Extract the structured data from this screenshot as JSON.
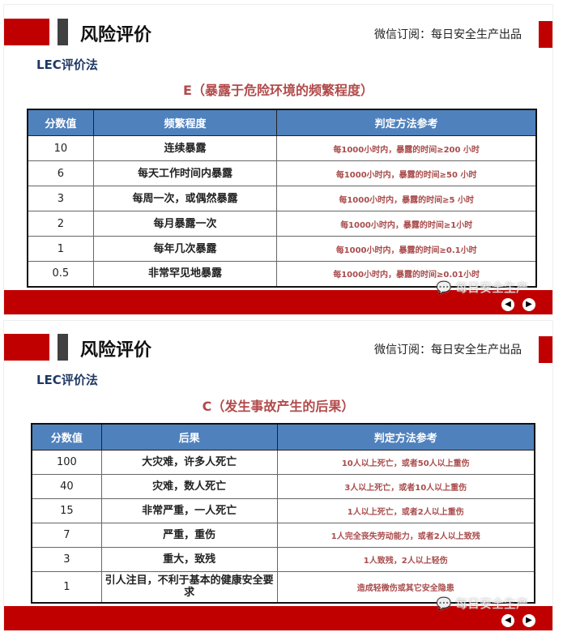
{
  "slides": [
    {
      "title": "风险评价",
      "wechat": "微信订阅：每日安全生产出品",
      "method": "LEC评价法",
      "subtitle": "E（暴露于危险环境的频繁程度）",
      "headers": [
        "分数值",
        "频繁程度",
        "判定方法参考"
      ],
      "rows": [
        [
          "10",
          "连续暴露",
          "每1000小时内，暴露的时间≥200 小时"
        ],
        [
          "6",
          "每天工作时间内暴露",
          "每1000小时内，暴露的时间≥50 小时"
        ],
        [
          "3",
          "每周一次，或偶然暴露",
          "每1000小时内，暴露的时间≥5 小时"
        ],
        [
          "2",
          "每月暴露一次",
          "每1000小时内，暴露的时间≥1小时"
        ],
        [
          "1",
          "每年几次暴露",
          "每1000小时内，暴露的时间≥0.1小时"
        ],
        [
          "0.5",
          "非常罕见地暴露",
          "每1000小时内，暴露的时间≥0.01小时"
        ]
      ],
      "watermark": "每日安全生产"
    },
    {
      "title": "风险评价",
      "wechat": "微信订阅：每日安全生产出品",
      "method": "LEC评价法",
      "subtitle": "C（发生事故产生的后果）",
      "headers": [
        "分数值",
        "后果",
        "判定方法参考"
      ],
      "rows": [
        [
          "100",
          "大灾难，许多人死亡",
          "10人以上死亡，或者50人以上重伤"
        ],
        [
          "40",
          "灾难，数人死亡",
          "3人以上死亡，或者10人以上重伤"
        ],
        [
          "15",
          "非常严重，一人死亡",
          "1人以上死亡，或者2人以上重伤"
        ],
        [
          "7",
          "严重，重伤",
          "1人完全丧失劳动能力，或者2人以上致残"
        ],
        [
          "3",
          "重大，致残",
          "1人致残，2人以上轻伤"
        ],
        [
          "1",
          "引人注目，不利于基本的健康安全要求",
          "造成轻微伤或其它安全隐患"
        ]
      ],
      "watermark": "每日安全生产"
    }
  ],
  "icons": {
    "wechat": "wechat-logo-icon",
    "prev": "arrow-left-icon",
    "next": "arrow-right-icon"
  },
  "colors": {
    "brand_red": "#c00000",
    "header_blue": "#4f81bd",
    "subtitle_red": "#b24a4a",
    "method_navy": "#1f3864"
  }
}
